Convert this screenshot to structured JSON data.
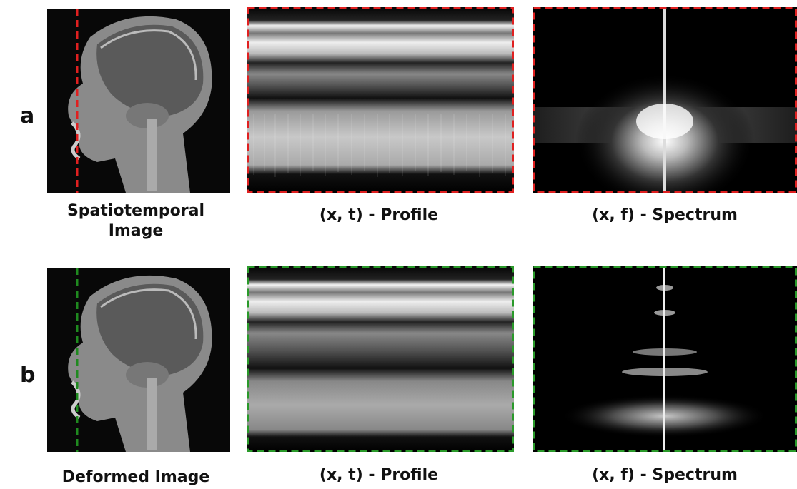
{
  "rows": [
    {
      "label": "a",
      "captions": [
        "Spatiotemporal Image",
        "(x, t) - Profile",
        "(x, f) - Spectrum"
      ]
    },
    {
      "label": "b",
      "captions": [
        "Deformed Image",
        "(x, t) - Profile",
        "(x, f) - Spectrum"
      ]
    }
  ]
}
